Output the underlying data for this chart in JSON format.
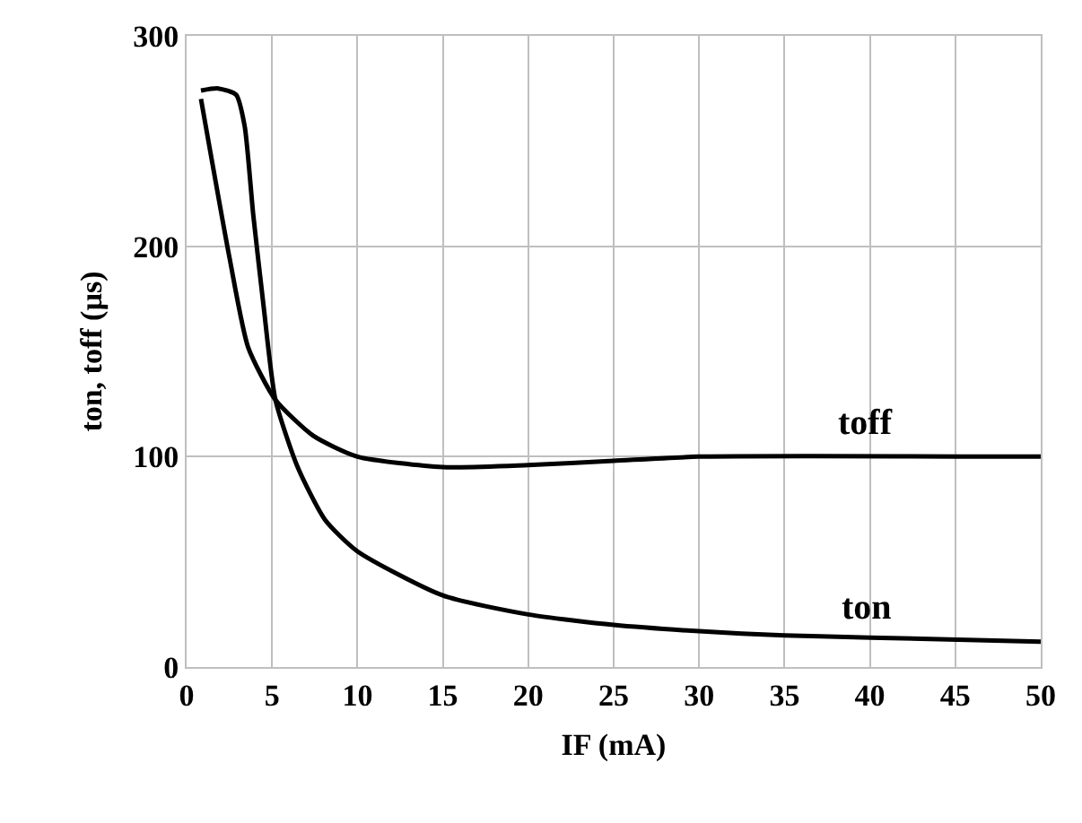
{
  "chart_data": {
    "type": "line",
    "xlabel": "IF (mA)",
    "ylabel": "ton, toff (µs)",
    "xlim": [
      0,
      50
    ],
    "ylim": [
      0,
      300
    ],
    "xticks": [
      0,
      5,
      10,
      15,
      20,
      25,
      30,
      35,
      40,
      45,
      50
    ],
    "yticks": [
      0,
      100,
      200,
      300
    ],
    "grid": true,
    "legend": false,
    "marker": "none",
    "line_style": "solid",
    "series": [
      {
        "name": "ton",
        "color": "#000000",
        "x": [
          0.84,
          1.85,
          2.9,
          3.4,
          3.9,
          4.5,
          5.2,
          6.5,
          8.1,
          10,
          15,
          20,
          25,
          30,
          35,
          40,
          50
        ],
        "values": [
          274,
          275,
          272,
          257,
          215,
          172,
          127,
          95,
          70,
          55,
          34,
          25,
          20,
          17,
          15,
          14,
          12
        ]
      },
      {
        "name": "toff",
        "color": "#000000",
        "x": [
          0.84,
          2.5,
          3.6,
          5.2,
          7.4,
          10,
          15,
          20,
          25,
          30,
          50
        ],
        "values": [
          270,
          195,
          152,
          127,
          110,
          100,
          95,
          96,
          98,
          100,
          100
        ]
      }
    ]
  }
}
